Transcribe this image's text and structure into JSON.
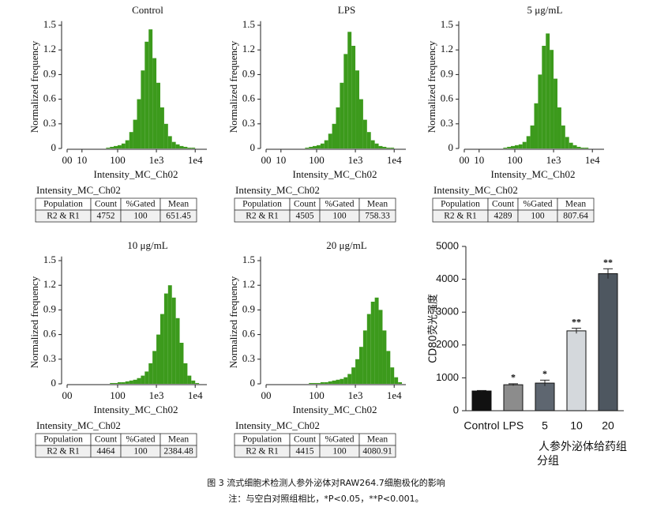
{
  "chart_data": [
    {
      "type": "histogram",
      "title": "Control",
      "xlabel": "Intensity_MC_Ch02",
      "ylabel": "Normalized frequency",
      "color": "#3c9a1c",
      "xscale": "logicle",
      "bins": [
        32,
        40,
        50,
        63,
        79,
        100,
        126,
        158,
        200,
        251,
        316,
        398,
        501,
        631,
        794,
        1000,
        1259,
        1585,
        1995,
        2512,
        3162,
        3981,
        5012,
        6310,
        7943,
        10000,
        12589,
        15849
      ],
      "counts": [
        0,
        0,
        0.01,
        0.02,
        0.03,
        0.04,
        0.06,
        0.1,
        0.2,
        0.35,
        0.6,
        0.95,
        1.3,
        1.45,
        1.1,
        0.8,
        0.5,
        0.3,
        0.15,
        0.08,
        0.05,
        0.03,
        0.02,
        0.01,
        0.01,
        0,
        0
      ],
      "xlim": [
        0,
        20000
      ],
      "ylim": [
        0,
        1.55
      ],
      "yticks": [
        0,
        0.3,
        0.6,
        0.9,
        1.2,
        1.5
      ],
      "xticks": [
        {
          "value": 0,
          "label": "00"
        },
        10,
        100,
        {
          "value": 1000,
          "label": "1e3"
        },
        {
          "value": 10000,
          "label": "1e4"
        }
      ]
    },
    {
      "type": "histogram",
      "title": "LPS",
      "xlabel": "Intensity_MC_Ch02",
      "ylabel": "Normalized frequency",
      "color": "#3c9a1c",
      "xscale": "logicle",
      "bins": [
        32,
        40,
        50,
        63,
        79,
        100,
        126,
        158,
        200,
        251,
        316,
        398,
        501,
        631,
        794,
        1000,
        1259,
        1585,
        1995,
        2512,
        3162,
        3981,
        5012,
        6310,
        7943,
        10000,
        12589,
        15849
      ],
      "counts": [
        0,
        0,
        0.01,
        0.02,
        0.03,
        0.04,
        0.06,
        0.1,
        0.18,
        0.3,
        0.5,
        0.8,
        1.15,
        1.42,
        1.25,
        0.95,
        0.6,
        0.35,
        0.2,
        0.1,
        0.06,
        0.03,
        0.02,
        0.01,
        0.01,
        0,
        0
      ],
      "xlim": [
        0,
        20000
      ],
      "ylim": [
        0,
        1.55
      ],
      "yticks": [
        0,
        0.3,
        0.6,
        0.9,
        1.2,
        1.5
      ],
      "xticks": [
        {
          "value": 0,
          "label": "00"
        },
        10,
        100,
        {
          "value": 1000,
          "label": "1e3"
        },
        {
          "value": 10000,
          "label": "1e4"
        }
      ]
    },
    {
      "type": "histogram",
      "title": "5 μg/mL",
      "xlabel": "Intensity_MC_Ch02",
      "ylabel": "Normalized frequency",
      "color": "#3c9a1c",
      "xscale": "logicle",
      "bins": [
        32,
        40,
        50,
        63,
        79,
        100,
        126,
        158,
        200,
        251,
        316,
        398,
        501,
        631,
        794,
        1000,
        1259,
        1585,
        1995,
        2512,
        3162,
        3981,
        5012,
        6310,
        7943,
        10000,
        12589,
        15849
      ],
      "counts": [
        0,
        0,
        0.01,
        0.02,
        0.03,
        0.04,
        0.05,
        0.08,
        0.15,
        0.28,
        0.55,
        0.9,
        1.25,
        1.4,
        1.2,
        0.85,
        0.5,
        0.28,
        0.14,
        0.07,
        0.04,
        0.02,
        0.01,
        0.01,
        0,
        0,
        0
      ],
      "xlim": [
        0,
        20000
      ],
      "ylim": [
        0,
        1.55
      ],
      "yticks": [
        0,
        0.3,
        0.6,
        0.9,
        1.2,
        1.5
      ],
      "xticks": [
        {
          "value": 0,
          "label": "00"
        },
        10,
        100,
        {
          "value": 1000,
          "label": "1e3"
        },
        {
          "value": 10000,
          "label": "1e4"
        }
      ]
    },
    {
      "type": "histogram",
      "title": "10 μg/mL",
      "xlabel": "Intensity_MC_Ch02",
      "ylabel": "Normalized frequency",
      "color": "#3c9a1c",
      "xscale": "logicle",
      "bins": [
        32,
        40,
        50,
        63,
        79,
        100,
        126,
        158,
        200,
        251,
        316,
        398,
        501,
        631,
        794,
        1000,
        1259,
        1585,
        1995,
        2512,
        3162,
        3981,
        5012,
        6310,
        7943,
        10000,
        12589,
        15849
      ],
      "counts": [
        0,
        0,
        0,
        0.01,
        0.01,
        0.02,
        0.02,
        0.03,
        0.04,
        0.05,
        0.07,
        0.1,
        0.15,
        0.25,
        0.4,
        0.6,
        0.85,
        1.1,
        1.2,
        1.05,
        0.8,
        0.5,
        0.25,
        0.1,
        0.04,
        0.01,
        0
      ],
      "xlim": [
        0,
        20000
      ],
      "ylim": [
        0,
        1.55
      ],
      "yticks": [
        0,
        0.3,
        0.6,
        0.9,
        1.2,
        1.5
      ],
      "xticks": [
        {
          "value": 0,
          "label": "00"
        },
        100,
        {
          "value": 1000,
          "label": "1e3"
        },
        {
          "value": 10000,
          "label": "1e4"
        }
      ]
    },
    {
      "type": "histogram",
      "title": "20 μg/mL",
      "xlabel": "Intensity_MC_Ch02",
      "ylabel": "Normalized frequency",
      "color": "#3c9a1c",
      "xscale": "logicle",
      "bins": [
        32,
        40,
        50,
        63,
        79,
        100,
        126,
        158,
        200,
        251,
        316,
        398,
        501,
        631,
        794,
        1000,
        1259,
        1585,
        1995,
        2512,
        3162,
        3981,
        5012,
        6310,
        7943,
        10000,
        12589,
        15849
      ],
      "counts": [
        0,
        0,
        0,
        0.01,
        0.01,
        0.01,
        0.02,
        0.02,
        0.03,
        0.04,
        0.05,
        0.06,
        0.08,
        0.12,
        0.2,
        0.3,
        0.45,
        0.65,
        0.85,
        1.0,
        1.05,
        0.9,
        0.65,
        0.4,
        0.2,
        0.08,
        0.02
      ],
      "xlim": [
        0,
        20000
      ],
      "ylim": [
        0,
        1.55
      ],
      "yticks": [
        0,
        0.3,
        0.6,
        0.9,
        1.2,
        1.5
      ],
      "xticks": [
        {
          "value": 0,
          "label": "00"
        },
        100,
        {
          "value": 1000,
          "label": "1e3"
        },
        {
          "value": 10000,
          "label": "1e4"
        }
      ]
    },
    {
      "type": "bar",
      "ylabel": "CD80荧光强度",
      "xlabel": "分组",
      "group_label": "人参外泌体给药组",
      "categories": [
        "Control",
        "LPS",
        "5",
        "10",
        "20"
      ],
      "values": [
        600,
        790,
        840,
        2430,
        4170
      ],
      "errors": [
        15,
        30,
        90,
        80,
        150
      ],
      "colors": [
        "#111111",
        "#8c8c8c",
        "#5e6670",
        "#d4d8dc",
        "#4e5760"
      ],
      "annotations": [
        null,
        "*",
        "*",
        "**",
        "**"
      ],
      "ylim": [
        0,
        5000
      ],
      "yticks": [
        0,
        1000,
        2000,
        3000,
        4000,
        5000
      ]
    }
  ],
  "tables": [
    {
      "title": "Intensity_MC_Ch02",
      "header": [
        "Population",
        "Count",
        "%Gated",
        "Mean"
      ],
      "rows": [
        [
          "R2 & R1",
          "4752",
          "100",
          "651.45"
        ]
      ]
    },
    {
      "title": "Intensity_MC_Ch02",
      "header": [
        "Population",
        "Count",
        "%Gated",
        "Mean"
      ],
      "rows": [
        [
          "R2 & R1",
          "4505",
          "100",
          "758.33"
        ]
      ]
    },
    {
      "title": "Intensity_MC_Ch02",
      "header": [
        "Population",
        "Count",
        "%Gated",
        "Mean"
      ],
      "rows": [
        [
          "R2 & R1",
          "4289",
          "100",
          "807.64"
        ]
      ]
    },
    {
      "title": "Intensity_MC_Ch02",
      "header": [
        "Population",
        "Count",
        "%Gated",
        "Mean"
      ],
      "rows": [
        [
          "R2 & R1",
          "4464",
          "100",
          "2384.48"
        ]
      ]
    },
    {
      "title": "Intensity_MC_Ch02",
      "header": [
        "Population",
        "Count",
        "%Gated",
        "Mean"
      ],
      "rows": [
        [
          "R2 & R1",
          "4415",
          "100",
          "4080.91"
        ]
      ]
    }
  ],
  "caption": {
    "title": "图 3 流式细胞术检测人参外泌体对RAW264.7细胞极化的影响",
    "note": "注：与空白对照组相比，*P<0.05，**P<0.001。"
  }
}
